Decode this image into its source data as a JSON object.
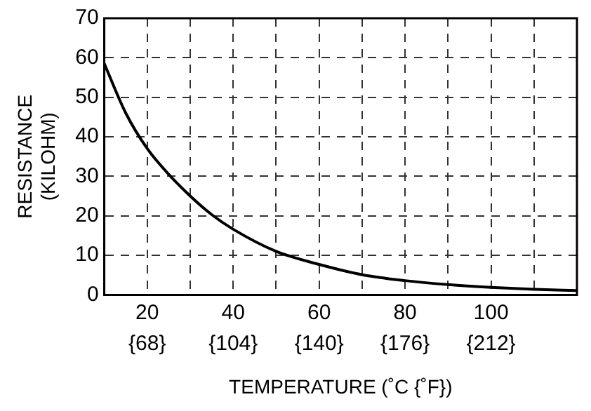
{
  "chart_data": {
    "type": "line",
    "xlabel": "TEMPERATURE (˚C {˚F})",
    "ylabel": "RESISTANCE\n(KILOHM)",
    "x": [
      10,
      15,
      20,
      25,
      30,
      35,
      40,
      50,
      60,
      70,
      80,
      90,
      100,
      110,
      120
    ],
    "series": [
      {
        "color": "#000000",
        "values": [
          58.5,
          46,
          37,
          30.5,
          25,
          20.3,
          16.6,
          11,
          7.7,
          5.1,
          3.6,
          2.6,
          1.9,
          1.4,
          1.1
        ]
      }
    ],
    "xlim": [
      10,
      120
    ],
    "xticks": [
      20,
      {
        "value": 30,
        "label": null
      },
      40,
      {
        "value": 50,
        "label": null
      },
      60,
      {
        "value": 70,
        "label": null
      },
      80,
      {
        "value": 90,
        "label": null
      },
      100,
      {
        "value": 110,
        "label": null
      }
    ],
    "x2lim": [
      50,
      248
    ],
    "x2ticks": [
      {
        "value": 68,
        "label": "{68}"
      },
      {
        "value": 104,
        "label": "{104}"
      },
      {
        "value": 140,
        "label": "{140}"
      },
      {
        "value": 176,
        "label": "{176}"
      },
      {
        "value": 212,
        "label": "{212}"
      }
    ],
    "ylim": [
      0,
      70
    ],
    "yticks": [
      0,
      10,
      20,
      30,
      40,
      50,
      60,
      70
    ],
    "grid": true,
    "legend": false,
    "marker": "none",
    "line_style": "solid"
  }
}
